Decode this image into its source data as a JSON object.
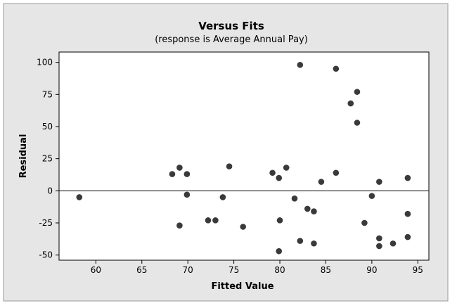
{
  "chart_data": {
    "type": "scatter",
    "title": "Versus Fits",
    "subtitle": "(response is Average Annual Pay)",
    "xlabel": "Fitted Value",
    "ylabel": "Residual",
    "xlim": [
      56,
      96.2
    ],
    "ylim": [
      -54,
      108
    ],
    "x_ticks": [
      60,
      65,
      70,
      75,
      80,
      85,
      90,
      95
    ],
    "y_ticks": [
      -50,
      -25,
      0,
      25,
      50,
      75,
      100
    ],
    "x_tick_labels": [
      "60",
      "65",
      "70",
      "75",
      "80",
      "85",
      "90",
      "95"
    ],
    "y_tick_labels": [
      "-50",
      "-25",
      "0",
      "25",
      "50",
      "75",
      "100"
    ],
    "reference_line_y": 0,
    "grid": false,
    "colors": {
      "point": "#3a3a3a",
      "frame_background": "#e6e6e6",
      "plot_background": "#ffffff"
    },
    "points": [
      {
        "x": 58.2,
        "y": -5
      },
      {
        "x": 68.3,
        "y": 13
      },
      {
        "x": 69.1,
        "y": 18
      },
      {
        "x": 69.1,
        "y": -27
      },
      {
        "x": 69.9,
        "y": 13
      },
      {
        "x": 69.9,
        "y": -3
      },
      {
        "x": 72.2,
        "y": -23
      },
      {
        "x": 73.0,
        "y": -23
      },
      {
        "x": 73.8,
        "y": -5
      },
      {
        "x": 74.5,
        "y": 19
      },
      {
        "x": 76.0,
        "y": -28
      },
      {
        "x": 79.2,
        "y": 14
      },
      {
        "x": 79.9,
        "y": 10
      },
      {
        "x": 80.0,
        "y": -23
      },
      {
        "x": 79.9,
        "y": -47
      },
      {
        "x": 80.7,
        "y": 18
      },
      {
        "x": 81.6,
        "y": -6
      },
      {
        "x": 82.2,
        "y": 98
      },
      {
        "x": 82.2,
        "y": -39
      },
      {
        "x": 83.0,
        "y": -14
      },
      {
        "x": 83.7,
        "y": -16
      },
      {
        "x": 83.7,
        "y": -41
      },
      {
        "x": 84.5,
        "y": 7
      },
      {
        "x": 86.1,
        "y": 95
      },
      {
        "x": 86.1,
        "y": 14
      },
      {
        "x": 87.7,
        "y": 68
      },
      {
        "x": 88.4,
        "y": 77
      },
      {
        "x": 88.4,
        "y": 53
      },
      {
        "x": 89.2,
        "y": -25
      },
      {
        "x": 90.0,
        "y": -4
      },
      {
        "x": 90.8,
        "y": 7
      },
      {
        "x": 90.8,
        "y": -37
      },
      {
        "x": 90.8,
        "y": -43
      },
      {
        "x": 92.3,
        "y": -41
      },
      {
        "x": 93.9,
        "y": 10
      },
      {
        "x": 93.9,
        "y": -18
      },
      {
        "x": 93.9,
        "y": -36
      }
    ]
  }
}
